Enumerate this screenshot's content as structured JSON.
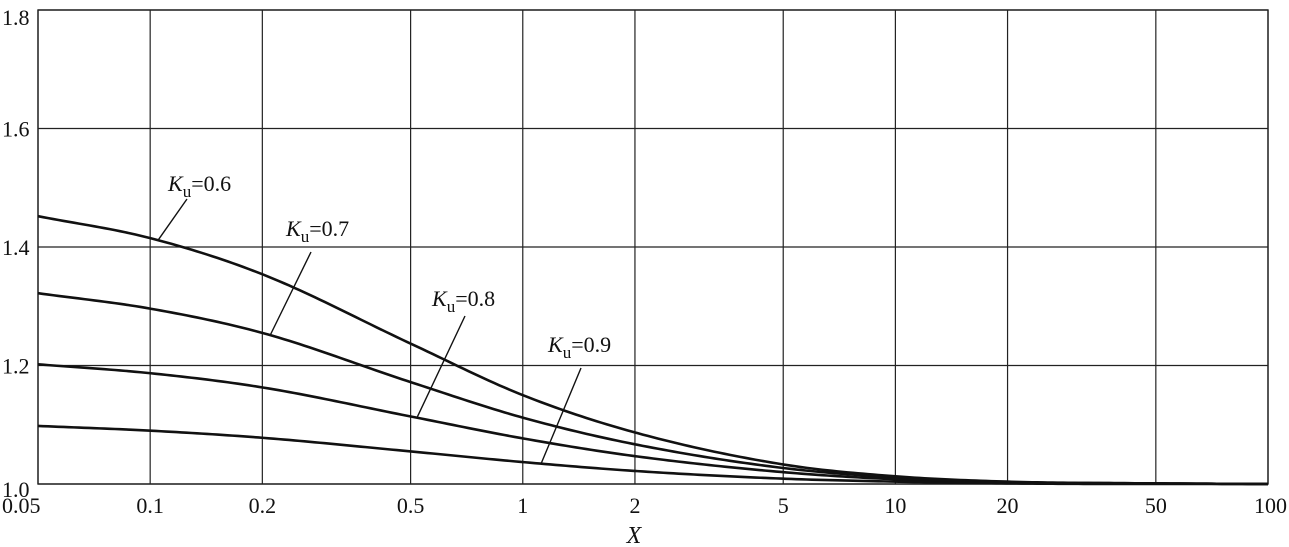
{
  "chart_data": {
    "type": "line",
    "x_scale": "log",
    "xlim": [
      0.05,
      100
    ],
    "ylim": [
      1.0,
      1.8
    ],
    "grid": true,
    "xlabel": "X",
    "ylabel": "",
    "x_ticks": [
      "0.05",
      "0.1",
      "0.2",
      "0.5",
      "1",
      "2",
      "5",
      "10",
      "20",
      "50",
      "100"
    ],
    "y_ticks": [
      "1.0",
      "1.2",
      "1.4",
      "1.6",
      "1.8"
    ],
    "x": [
      0.05,
      0.1,
      0.2,
      0.5,
      1,
      2,
      5,
      10,
      20,
      50,
      100
    ],
    "series": [
      {
        "name": "K_u=0.6",
        "label_k": "K",
        "label_sub": "u",
        "label_val": "=0.6",
        "values": [
          1.452,
          1.415,
          1.354,
          1.237,
          1.15,
          1.087,
          1.033,
          1.013,
          1.004,
          1.001,
          1.0
        ]
      },
      {
        "name": "K_u=0.7",
        "label_k": "K",
        "label_sub": "u",
        "label_val": "=0.7",
        "values": [
          1.322,
          1.296,
          1.255,
          1.172,
          1.112,
          1.067,
          1.027,
          1.011,
          1.003,
          1.001,
          1.0
        ]
      },
      {
        "name": "K_u=0.8",
        "label_k": "K",
        "label_sub": "u",
        "label_val": "=0.8",
        "values": [
          1.202,
          1.187,
          1.163,
          1.114,
          1.077,
          1.047,
          1.02,
          1.008,
          1.003,
          1.001,
          1.0
        ]
      },
      {
        "name": "K_u=0.9",
        "label_k": "K",
        "label_sub": "u",
        "label_val": "=0.9",
        "values": [
          1.098,
          1.09,
          1.078,
          1.055,
          1.037,
          1.022,
          1.009,
          1.004,
          1.001,
          1.0,
          1.0
        ]
      }
    ]
  }
}
